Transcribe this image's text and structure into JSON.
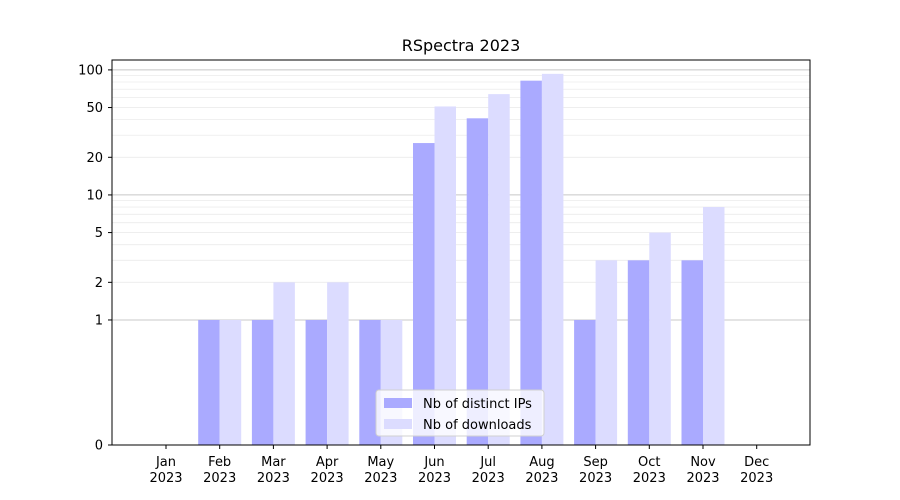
{
  "chart_data": {
    "type": "bar",
    "title": "RSpectra 2023",
    "xlabel": "",
    "ylabel": "",
    "yscale": "symlog",
    "ylim": [
      0,
      120
    ],
    "yticks": [
      0,
      1,
      2,
      5,
      10,
      20,
      50,
      100
    ],
    "grid": "horizontal",
    "legend_position": "lower-center",
    "categories": [
      [
        "Jan",
        "2023"
      ],
      [
        "Feb",
        "2023"
      ],
      [
        "Mar",
        "2023"
      ],
      [
        "Apr",
        "2023"
      ],
      [
        "May",
        "2023"
      ],
      [
        "Jun",
        "2023"
      ],
      [
        "Jul",
        "2023"
      ],
      [
        "Aug",
        "2023"
      ],
      [
        "Sep",
        "2023"
      ],
      [
        "Oct",
        "2023"
      ],
      [
        "Nov",
        "2023"
      ],
      [
        "Dec",
        "2023"
      ]
    ],
    "series": [
      {
        "name": "Nb of distinct IPs",
        "color": "#aaaaff",
        "values": [
          0,
          1,
          1,
          1,
          1,
          26,
          41,
          82,
          1,
          3,
          3,
          0
        ]
      },
      {
        "name": "Nb of downloads",
        "color": "#dcdcff",
        "values": [
          0,
          1,
          2,
          2,
          1,
          51,
          64,
          93,
          3,
          5,
          8,
          0
        ]
      }
    ]
  }
}
